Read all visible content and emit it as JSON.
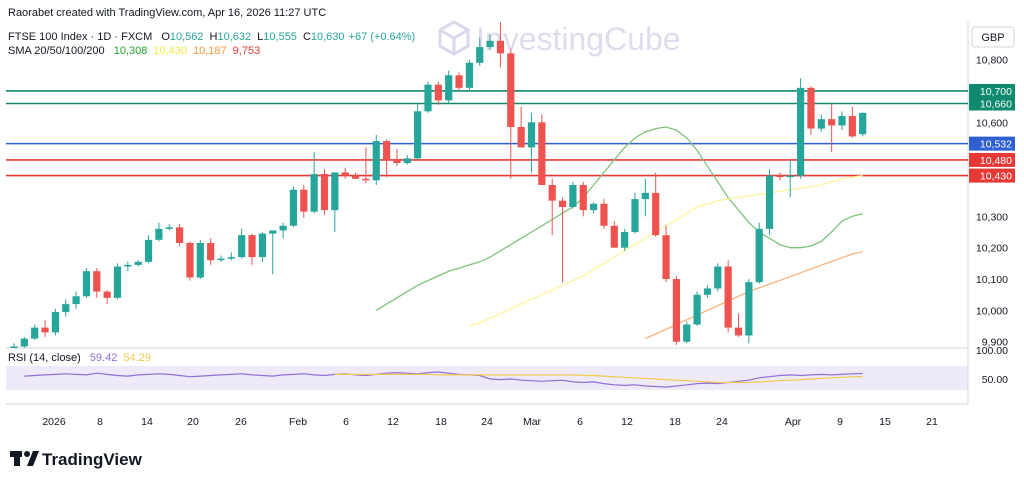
{
  "header": {
    "attribution": "Raorabet created with TradingView.com, Apr 16, 2026 11:27 UTC"
  },
  "legend": {
    "symbol": "FTSE 100 Index · 1D · FXCM",
    "ohlc": [
      {
        "k": "O",
        "v": "10,562"
      },
      {
        "k": "H",
        "v": "10,632"
      },
      {
        "k": "L",
        "v": "10,555"
      },
      {
        "k": "C",
        "v": "10,630"
      }
    ],
    "change": "+67 (+0.64%)",
    "sma_label": "SMA 20/50/100/200",
    "sma_values": [
      {
        "v": "10,308",
        "color": "#22a02c"
      },
      {
        "v": "10,430",
        "color": "#f7e84a"
      },
      {
        "v": "10,187",
        "color": "#f39a3c"
      },
      {
        "v": "9,753",
        "color": "#e83a3a"
      }
    ],
    "rsi_label": "RSI (14, close)",
    "rsi_values": [
      {
        "v": "59.42",
        "color": "#8f6fd8"
      },
      {
        "v": "54.29",
        "color": "#f2c94c"
      }
    ]
  },
  "watermark": "InvestingCube",
  "currency": "GBP",
  "brand": "TradingView",
  "colors": {
    "up": "#26a69a",
    "down": "#ef5350",
    "sma20": "#7cc47a",
    "sma50": "#fff59d",
    "sma100": "#f7b27a",
    "resistance": "#0f8a6e",
    "support": "#e53935",
    "pivot": "#2f5fd0",
    "rsi": "#8f6fd8",
    "rsi_ma": "#f2c94c"
  },
  "price_axis": {
    "ticks": [
      "10,800",
      "10,600",
      "10,430",
      "10,300",
      "10,200",
      "10,100",
      "10,000",
      "9,900"
    ]
  },
  "rsi_axis": {
    "ticks": [
      "100.00",
      "50.00"
    ]
  },
  "time_axis": {
    "ticks": [
      "2026",
      "8",
      "14",
      "20",
      "26",
      "Feb",
      "6",
      "12",
      "18",
      "24",
      "Mar",
      "6",
      "12",
      "18",
      "24",
      "Apr",
      "9",
      "15",
      "21"
    ]
  },
  "chart_data": {
    "type": "candlestick",
    "title": "FTSE 100 Index · 1D · FXCM",
    "ylim": [
      9880,
      10920
    ],
    "levels": [
      {
        "value": 10700,
        "label": "10,700",
        "kind": "resistance"
      },
      {
        "value": 10660,
        "label": "10,660",
        "kind": "resistance"
      },
      {
        "value": 10532,
        "label": "10,532",
        "kind": "pivot"
      },
      {
        "value": 10480,
        "label": "10,480",
        "kind": "support"
      },
      {
        "value": 10430,
        "label": "10,430",
        "kind": "support"
      }
    ],
    "candles": [
      [
        9880,
        9895,
        9870,
        9885
      ],
      [
        9885,
        9915,
        9880,
        9910
      ],
      [
        9910,
        9955,
        9905,
        9945
      ],
      [
        9945,
        9970,
        9915,
        9930
      ],
      [
        9930,
        10005,
        9920,
        9995
      ],
      [
        9995,
        10035,
        9980,
        10020
      ],
      [
        10020,
        10060,
        10005,
        10045
      ],
      [
        10045,
        10135,
        10040,
        10125
      ],
      [
        10125,
        10135,
        10040,
        10060
      ],
      [
        10060,
        10065,
        10020,
        10040
      ],
      [
        10040,
        10150,
        10035,
        10140
      ],
      [
        10140,
        10155,
        10125,
        10145
      ],
      [
        10145,
        10160,
        10140,
        10155
      ],
      [
        10155,
        10240,
        10150,
        10225
      ],
      [
        10225,
        10280,
        10220,
        10260
      ],
      [
        10260,
        10275,
        10255,
        10265
      ],
      [
        10265,
        10275,
        10205,
        10215
      ],
      [
        10215,
        10220,
        10095,
        10105
      ],
      [
        10105,
        10225,
        10100,
        10215
      ],
      [
        10215,
        10230,
        10145,
        10160
      ],
      [
        10160,
        10175,
        10155,
        10165
      ],
      [
        10165,
        10185,
        10160,
        10170
      ],
      [
        10170,
        10260,
        10165,
        10240
      ],
      [
        10240,
        10245,
        10145,
        10170
      ],
      [
        10170,
        10250,
        10155,
        10245
      ],
      [
        10245,
        10250,
        10115,
        10255
      ],
      [
        10255,
        10280,
        10230,
        10270
      ],
      [
        10270,
        10395,
        10265,
        10385
      ],
      [
        10385,
        10400,
        10295,
        10315
      ],
      [
        10315,
        10505,
        10310,
        10435
      ],
      [
        10435,
        10450,
        10305,
        10320
      ],
      [
        10320,
        10440,
        10250,
        10440
      ],
      [
        10440,
        10455,
        10420,
        10430
      ],
      [
        10430,
        10440,
        10420,
        10420
      ],
      [
        10420,
        10520,
        10405,
        10415
      ],
      [
        10415,
        10560,
        10400,
        10540
      ],
      [
        10540,
        10545,
        10425,
        10480
      ],
      [
        10480,
        10515,
        10460,
        10470
      ],
      [
        10470,
        10495,
        10465,
        10485
      ],
      [
        10485,
        10660,
        10480,
        10635
      ],
      [
        10635,
        10730,
        10630,
        10720
      ],
      [
        10720,
        10730,
        10655,
        10670
      ],
      [
        10670,
        10765,
        10660,
        10750
      ],
      [
        10750,
        10760,
        10700,
        10710
      ],
      [
        10710,
        10800,
        10700,
        10790
      ],
      [
        10790,
        10870,
        10780,
        10840
      ],
      [
        10840,
        10880,
        10830,
        10860
      ],
      [
        10860,
        10920,
        10775,
        10820
      ],
      [
        10820,
        10835,
        10420,
        10585
      ],
      [
        10585,
        10650,
        10520,
        10520
      ],
      [
        10520,
        10630,
        10440,
        10600
      ],
      [
        10600,
        10625,
        10410,
        10400
      ],
      [
        10400,
        10420,
        10240,
        10350
      ],
      [
        10350,
        10360,
        10090,
        10330
      ],
      [
        10330,
        10410,
        10325,
        10400
      ],
      [
        10400,
        10410,
        10300,
        10320
      ],
      [
        10320,
        10345,
        10310,
        10340
      ],
      [
        10340,
        10355,
        10260,
        10270
      ],
      [
        10270,
        10285,
        10200,
        10200
      ],
      [
        10200,
        10260,
        10190,
        10250
      ],
      [
        10250,
        10375,
        10245,
        10355
      ],
      [
        10355,
        10420,
        10300,
        10375
      ],
      [
        10375,
        10440,
        10235,
        10240
      ],
      [
        10240,
        10270,
        10090,
        10100
      ],
      [
        10100,
        10110,
        9890,
        9900
      ],
      [
        9900,
        9965,
        9895,
        9955
      ],
      [
        9955,
        10060,
        9950,
        10050
      ],
      [
        10050,
        10080,
        10040,
        10070
      ],
      [
        10070,
        10150,
        10060,
        10140
      ],
      [
        10140,
        10160,
        9930,
        9945
      ],
      [
        9945,
        9990,
        9915,
        9920
      ],
      [
        9920,
        10100,
        9895,
        10090
      ],
      [
        10090,
        10280,
        10085,
        10260
      ],
      [
        10260,
        10450,
        10240,
        10430
      ],
      [
        10430,
        10440,
        10415,
        10425
      ],
      [
        10425,
        10480,
        10360,
        10430
      ],
      [
        10430,
        10740,
        10420,
        10710
      ],
      [
        10710,
        10715,
        10560,
        10580
      ],
      [
        10580,
        10625,
        10570,
        10610
      ],
      [
        10610,
        10660,
        10505,
        10590
      ],
      [
        10590,
        10635,
        10575,
        10620
      ],
      [
        10620,
        10650,
        10550,
        10555
      ],
      [
        10562,
        10632,
        10555,
        10630
      ]
    ],
    "sma20": [
      10000,
      10020,
      10040,
      10060,
      10080,
      10095,
      10110,
      10125,
      10135,
      10145,
      10155,
      10170,
      10190,
      10210,
      10230,
      10250,
      10270,
      10290,
      10310,
      10330,
      10360,
      10400,
      10440,
      10480,
      10520,
      10550,
      10570,
      10580,
      10585,
      10575,
      10550,
      10510,
      10460,
      10410,
      10360,
      10320,
      10280,
      10250,
      10230,
      10210,
      10200,
      10200,
      10205,
      10220,
      10250,
      10285,
      10300,
      10308
    ],
    "sma20_offset": 35,
    "sma50": [
      9950,
      9960,
      9975,
      9990,
      10005,
      10020,
      10035,
      10050,
      10065,
      10080,
      10095,
      10110,
      10130,
      10150,
      10170,
      10190,
      10210,
      10230,
      10250,
      10270,
      10290,
      10310,
      10330,
      10340,
      10350,
      10355,
      10360,
      10365,
      10370,
      10375,
      10380,
      10385,
      10390,
      10395,
      10400,
      10410,
      10420,
      10425,
      10430
    ],
    "sma50_offset": 44,
    "sma100": [
      9910,
      9925,
      9940,
      9955,
      9970,
      9985,
      10000,
      10015,
      10030,
      10045,
      10060,
      10072,
      10084,
      10096,
      10108,
      10120,
      10132,
      10144,
      10156,
      10168,
      10180,
      10187
    ],
    "sma100_offset": 61,
    "rsi": [
      55,
      56,
      57,
      58,
      59,
      58,
      57,
      60,
      58,
      56,
      55,
      57,
      58,
      59,
      58,
      56,
      54,
      55,
      56,
      57,
      58,
      59,
      57,
      56,
      55,
      57,
      58,
      59,
      57,
      56,
      58,
      59,
      57,
      56,
      58,
      60,
      61,
      60,
      59,
      61,
      62,
      60,
      58,
      57,
      56,
      50,
      49,
      50,
      48,
      47,
      46,
      47,
      48,
      45,
      44,
      45,
      42,
      40,
      39,
      40,
      38,
      37,
      36,
      38,
      40,
      42,
      43,
      42,
      44,
      46,
      48,
      52,
      54,
      56,
      57,
      56,
      57,
      58,
      57,
      58,
      59,
      59.42
    ],
    "rsi_offset": 1,
    "rsi_ma": [
      58,
      58,
      58,
      58,
      58,
      58,
      58,
      58,
      58,
      58,
      57,
      57,
      57,
      57,
      57,
      57,
      57,
      57,
      57,
      57,
      57,
      57,
      57,
      57,
      56,
      56,
      55,
      54,
      53,
      52,
      51,
      50,
      49,
      48,
      47,
      46,
      45,
      44,
      44,
      44,
      44,
      45,
      46,
      47,
      48,
      49,
      50,
      51,
      52,
      53,
      54,
      54.29
    ],
    "rsi_ma_offset": 31
  }
}
